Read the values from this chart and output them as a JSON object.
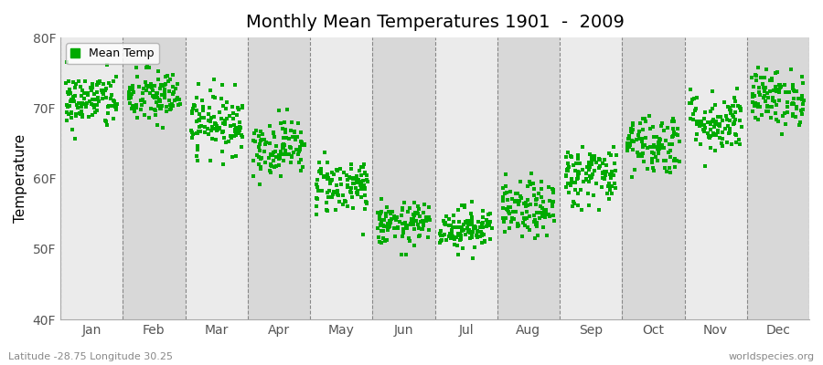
{
  "title": "Monthly Mean Temperatures 1901  -  2009",
  "ylabel": "Temperature",
  "yticks": [
    40,
    50,
    60,
    70,
    80
  ],
  "ytick_labels": [
    "40F",
    "50F",
    "60F",
    "70F",
    "80F"
  ],
  "ylim": [
    40,
    80
  ],
  "months": [
    "Jan",
    "Feb",
    "Mar",
    "Apr",
    "May",
    "Jun",
    "Jul",
    "Aug",
    "Sep",
    "Oct",
    "Nov",
    "Dec"
  ],
  "legend_label": "Mean Temp",
  "marker_color": "#00aa00",
  "bg_color1": "#ebebeb",
  "bg_color2": "#d8d8d8",
  "outer_background": "#ffffff",
  "subtitle_left": "Latitude -28.75 Longitude 30.25",
  "subtitle_right": "worldspecies.org",
  "mean_temps_F": [
    71.0,
    71.5,
    68.0,
    64.5,
    59.0,
    53.5,
    53.0,
    55.5,
    60.5,
    65.0,
    68.0,
    71.5
  ],
  "spread": [
    2.0,
    2.0,
    2.2,
    2.0,
    2.0,
    1.5,
    1.5,
    2.0,
    2.2,
    2.2,
    2.2,
    2.0
  ],
  "n_years": 109
}
